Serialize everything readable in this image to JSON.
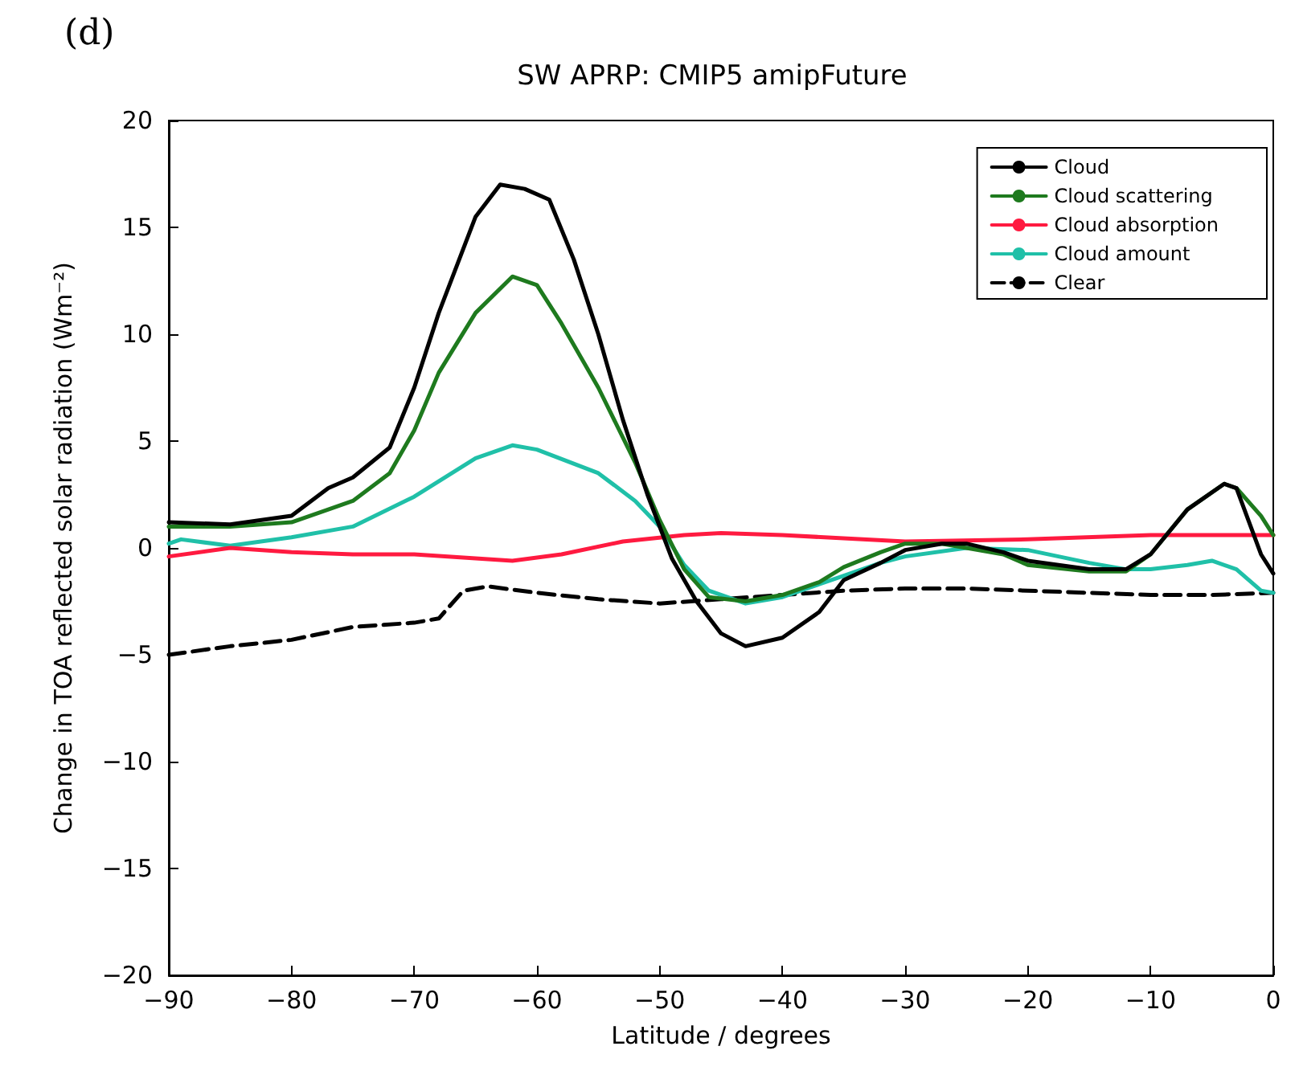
{
  "chart_data": {
    "type": "line",
    "title": "SW APRP: CMIP5 amipFuture",
    "xlabel": "Latitude / degrees",
    "ylabel": "Change in TOA reflected solar radiation (Wm⁻²)",
    "annotations": [
      "(d)"
    ],
    "xlim": [
      -90,
      0
    ],
    "xticks": [
      -90,
      -80,
      -70,
      -60,
      -50,
      -40,
      -30,
      -20,
      -10,
      0
    ],
    "ylim": [
      -20,
      20
    ],
    "yticks": [
      -20,
      -15,
      -10,
      -5,
      0,
      5,
      10,
      15,
      20
    ],
    "grid": false,
    "legend": "top right",
    "marker": "none",
    "series": [
      {
        "name": "Cloud",
        "color": "#000000",
        "x": [
          -90,
          -85,
          -80,
          -77,
          -75,
          -72,
          -70,
          -68,
          -65,
          -63,
          -61,
          -59,
          -57,
          -55,
          -53,
          -51,
          -49,
          -47,
          -45,
          -43,
          -40,
          -37,
          -35,
          -32,
          -30,
          -27,
          -25,
          -22,
          -20,
          -15,
          -12,
          -10,
          -7,
          -4,
          -3,
          -1,
          0
        ],
        "values": [
          1.2,
          1.1,
          1.5,
          2.8,
          3.3,
          4.7,
          7.5,
          11,
          15.5,
          17,
          16.8,
          16.3,
          13.5,
          10,
          6,
          2.5,
          -0.5,
          -2.5,
          -4,
          -4.6,
          -4.2,
          -3,
          -1.5,
          -0.7,
          -0.1,
          0.2,
          0.2,
          -0.2,
          -0.6,
          -1,
          -1,
          -0.3,
          1.8,
          3,
          2.8,
          -0.3,
          -1.2
        ]
      },
      {
        "name": "Cloud scattering",
        "color": "#1e7a1e",
        "x": [
          -90,
          -85,
          -80,
          -77,
          -75,
          -72,
          -70,
          -68,
          -65,
          -62,
          -60,
          -58,
          -55,
          -52,
          -50,
          -48,
          -46,
          -43,
          -40,
          -37,
          -35,
          -32,
          -30,
          -27,
          -25,
          -22,
          -20,
          -15,
          -12,
          -10,
          -7,
          -4,
          -3,
          -1,
          0
        ],
        "values": [
          1,
          1,
          1.2,
          1.8,
          2.2,
          3.5,
          5.5,
          8.2,
          11,
          12.7,
          12.3,
          10.5,
          7.5,
          4,
          1.3,
          -1,
          -2.3,
          -2.5,
          -2.2,
          -1.6,
          -0.9,
          -0.2,
          0.2,
          0.2,
          0,
          -0.3,
          -0.8,
          -1.1,
          -1.1,
          -0.3,
          1.8,
          3,
          2.8,
          1.5,
          0.6
        ]
      },
      {
        "name": "Cloud absorption",
        "color": "#ff1a40",
        "x": [
          -90,
          -85,
          -80,
          -75,
          -70,
          -62,
          -58,
          -53,
          -48,
          -45,
          -40,
          -30,
          -20,
          -10,
          0
        ],
        "values": [
          -0.4,
          0,
          -0.2,
          -0.3,
          -0.3,
          -0.6,
          -0.3,
          0.3,
          0.6,
          0.7,
          0.6,
          0.3,
          0.4,
          0.6,
          0.6
        ]
      },
      {
        "name": "Cloud amount",
        "color": "#20c0a8",
        "x": [
          -90,
          -89,
          -85,
          -80,
          -75,
          -70,
          -65,
          -62,
          -60,
          -55,
          -52,
          -50,
          -48,
          -46,
          -43,
          -40,
          -37,
          -35,
          -32,
          -30,
          -25,
          -20,
          -15,
          -12,
          -10,
          -7,
          -5,
          -3,
          -1,
          0
        ],
        "values": [
          0.2,
          0.4,
          0.1,
          0.5,
          1,
          2.4,
          4.2,
          4.8,
          4.6,
          3.5,
          2.2,
          1,
          -0.8,
          -2,
          -2.6,
          -2.3,
          -1.7,
          -1.3,
          -0.7,
          -0.4,
          0,
          -0.1,
          -0.7,
          -1,
          -1,
          -0.8,
          -0.6,
          -1,
          -2,
          -2.1
        ]
      },
      {
        "name": "Clear",
        "color": "#000000",
        "line_style": "dashed",
        "x": [
          -90,
          -85,
          -80,
          -75,
          -70,
          -68,
          -66,
          -64,
          -60,
          -55,
          -50,
          -45,
          -40,
          -35,
          -30,
          -25,
          -20,
          -15,
          -10,
          -5,
          0
        ],
        "values": [
          -5,
          -4.6,
          -4.3,
          -3.7,
          -3.5,
          -3.3,
          -2,
          -1.8,
          -2.1,
          -2.4,
          -2.6,
          -2.4,
          -2.2,
          -2,
          -1.9,
          -1.9,
          -2,
          -2.1,
          -2.2,
          -2.2,
          -2.1
        ]
      }
    ]
  }
}
